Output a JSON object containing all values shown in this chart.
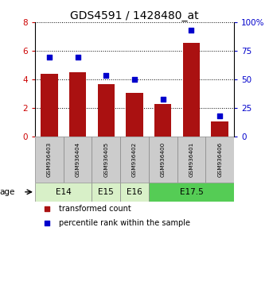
{
  "title": "GDS4591 / 1428480_at",
  "samples": [
    "GSM936403",
    "GSM936404",
    "GSM936405",
    "GSM936402",
    "GSM936400",
    "GSM936401",
    "GSM936406"
  ],
  "transformed_counts": [
    4.4,
    4.5,
    3.7,
    3.1,
    2.3,
    6.6,
    1.1
  ],
  "percentile_ranks": [
    70,
    70,
    54,
    50,
    33,
    93,
    18
  ],
  "age_groups": [
    {
      "label": "E14",
      "samples": [
        "GSM936403",
        "GSM936404"
      ],
      "color": "#d8f0c8"
    },
    {
      "label": "E15",
      "samples": [
        "GSM936405"
      ],
      "color": "#d8f0c8"
    },
    {
      "label": "E16",
      "samples": [
        "GSM936402"
      ],
      "color": "#d8f0c8"
    },
    {
      "label": "E17.5",
      "samples": [
        "GSM936400",
        "GSM936401",
        "GSM936406"
      ],
      "color": "#55cc55"
    }
  ],
  "bar_color": "#aa1111",
  "dot_color": "#0000cc",
  "left_ylim": [
    0,
    8
  ],
  "right_ylim": [
    0,
    100
  ],
  "left_yticks": [
    0,
    2,
    4,
    6,
    8
  ],
  "right_yticks": [
    0,
    25,
    50,
    75,
    100
  ],
  "right_yticklabels": [
    "0",
    "25",
    "50",
    "75",
    "100%"
  ],
  "left_axis_color": "#cc0000",
  "right_axis_color": "#0000cc",
  "background_color": "#ffffff",
  "sample_bg_color": "#cccccc",
  "age_label": "age"
}
